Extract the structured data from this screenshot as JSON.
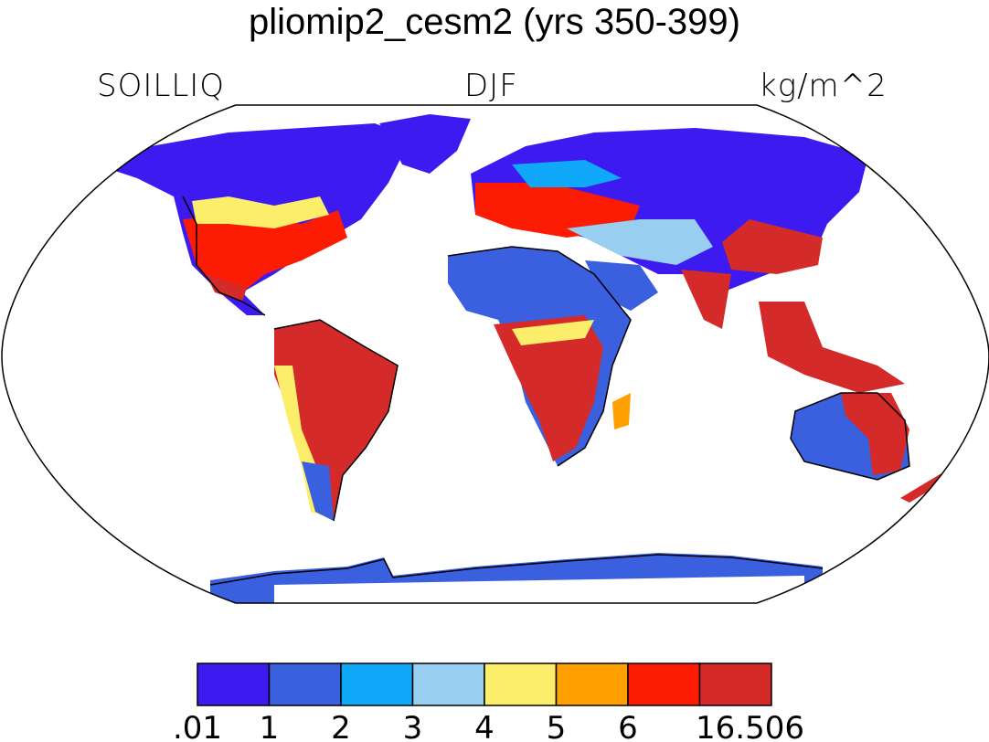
{
  "title": "pliomip2_cesm2 (yrs 350-399)",
  "labels": {
    "left": "SOILLIQ",
    "center": "DJF",
    "right": "kg/m^2"
  },
  "colorbar": {
    "colors": [
      "#3d1af0",
      "#3a60e0",
      "#10a8f8",
      "#98cff0",
      "#fcee6a",
      "#ff9f00",
      "#fc1c04",
      "#d42a2a"
    ],
    "ticks": [
      ".01",
      "1",
      "2",
      "3",
      "4",
      "5",
      "6",
      "16.506"
    ]
  }
}
